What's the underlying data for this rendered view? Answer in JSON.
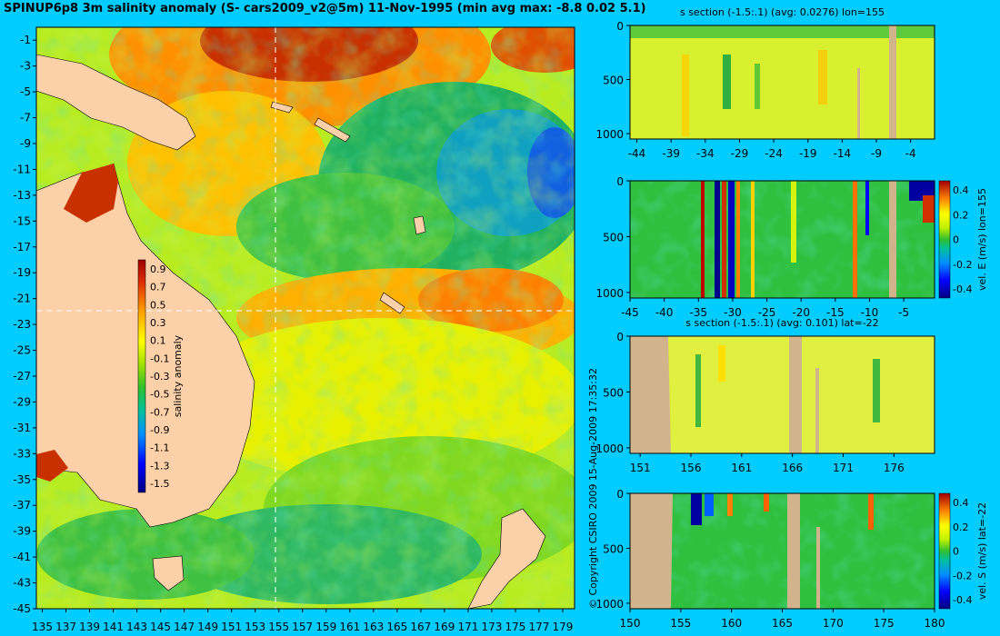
{
  "title": "SPINUP6p8 3m salinity anomaly (S- cars2009_v2@5m) 11-Nov-1995 (min avg max: -8.8 0.02 5.1)",
  "copyright": "© Copyright CSIRO 2009  15-Aug-2009 17:35:32",
  "colors": {
    "background": "#00ccff",
    "land": "#fcd0a8",
    "section_land": "#d2b48c",
    "crosshair": "#ffffff"
  },
  "colormap": [
    "#00007f",
    "#0000ff",
    "#0080ff",
    "#00c0c0",
    "#20c040",
    "#80e020",
    "#c8f000",
    "#ffff00",
    "#ffc000",
    "#ff8000",
    "#e03000",
    "#a00000"
  ],
  "chart_data": [
    {
      "id": "map",
      "type": "heatmap",
      "title": "SPINUP6p8 3m salinity anomaly (S- cars2009_v2@5m) 11-Nov-1995 (min avg max: -8.8 0.02 5.1)",
      "x_ticks": [
        "135",
        "137",
        "139",
        "141",
        "143",
        "145",
        "147",
        "149",
        "151",
        "153",
        "155",
        "157",
        "159",
        "161",
        "163",
        "165",
        "167",
        "169",
        "171",
        "173",
        "175",
        "177",
        "179"
      ],
      "y_ticks": [
        "-1",
        "-3",
        "-5",
        "-7",
        "-9",
        "-11",
        "-13",
        "-15",
        "-17",
        "-19",
        "-21",
        "-23",
        "-25",
        "-27",
        "-29",
        "-31",
        "-33",
        "-35",
        "-37",
        "-39",
        "-41",
        "-43",
        "-45"
      ],
      "xlim": [
        134.5,
        180
      ],
      "ylim": [
        -45,
        0
      ],
      "crosshair": {
        "lon": 155,
        "lat": -22
      },
      "colorbar": {
        "label": "salinity anomaly",
        "ticks": [
          "0.9",
          "0.7",
          "0.5",
          "0.3",
          "0.1",
          "-0.1",
          "-0.3",
          "-0.5",
          "-0.7",
          "-0.9",
          "-1.1",
          "-1.3",
          "-1.5"
        ],
        "range": [
          -1.6,
          1.0
        ]
      }
    },
    {
      "id": "s-section-lon",
      "type": "heatmap",
      "title": "s section (-1.5:.1) (avg: 0.0276) lon=155",
      "x_ticks": [
        "-44",
        "-39",
        "-34",
        "-29",
        "-24",
        "-19",
        "-14",
        "-9",
        "-4"
      ],
      "xlim": [
        -45,
        -0.5
      ],
      "y_ticks": [
        "0",
        "500",
        "1000"
      ],
      "ylim": [
        0,
        1050
      ]
    },
    {
      "id": "velE-section-lon",
      "type": "heatmap",
      "title": "",
      "x_ticks": [
        "-45",
        "-40",
        "-35",
        "-30",
        "-25",
        "-20",
        "-15",
        "-10",
        "-5"
      ],
      "xlim": [
        -45,
        -0.5
      ],
      "y_ticks": [
        "0",
        "500",
        "1000"
      ],
      "ylim": [
        0,
        1050
      ],
      "colorbar": {
        "label": "vel. E (m/s) lon=155",
        "ticks": [
          "0.4",
          "0.2",
          "0",
          "-0.2",
          "-0.4"
        ]
      }
    },
    {
      "id": "s-section-lat",
      "type": "heatmap",
      "title": "s section (-1.5:.1) (avg: 0.101) lat=-22",
      "x_ticks": [
        "151",
        "156",
        "161",
        "166",
        "171",
        "176"
      ],
      "xlim": [
        150,
        180
      ],
      "y_ticks": [
        "0",
        "500",
        "1000"
      ],
      "ylim": [
        0,
        1050
      ]
    },
    {
      "id": "velS-section-lat",
      "type": "heatmap",
      "title": "",
      "x_ticks": [
        "150",
        "155",
        "160",
        "165",
        "170",
        "175",
        "180"
      ],
      "xlim": [
        150,
        180
      ],
      "y_ticks": [
        "0",
        "500",
        "1000"
      ],
      "ylim": [
        0,
        1050
      ],
      "colorbar": {
        "label": "vel. S (m/s) lat=-22",
        "ticks": [
          "0.4",
          "0.2",
          "0",
          "-0.2",
          "-0.4"
        ]
      }
    }
  ]
}
